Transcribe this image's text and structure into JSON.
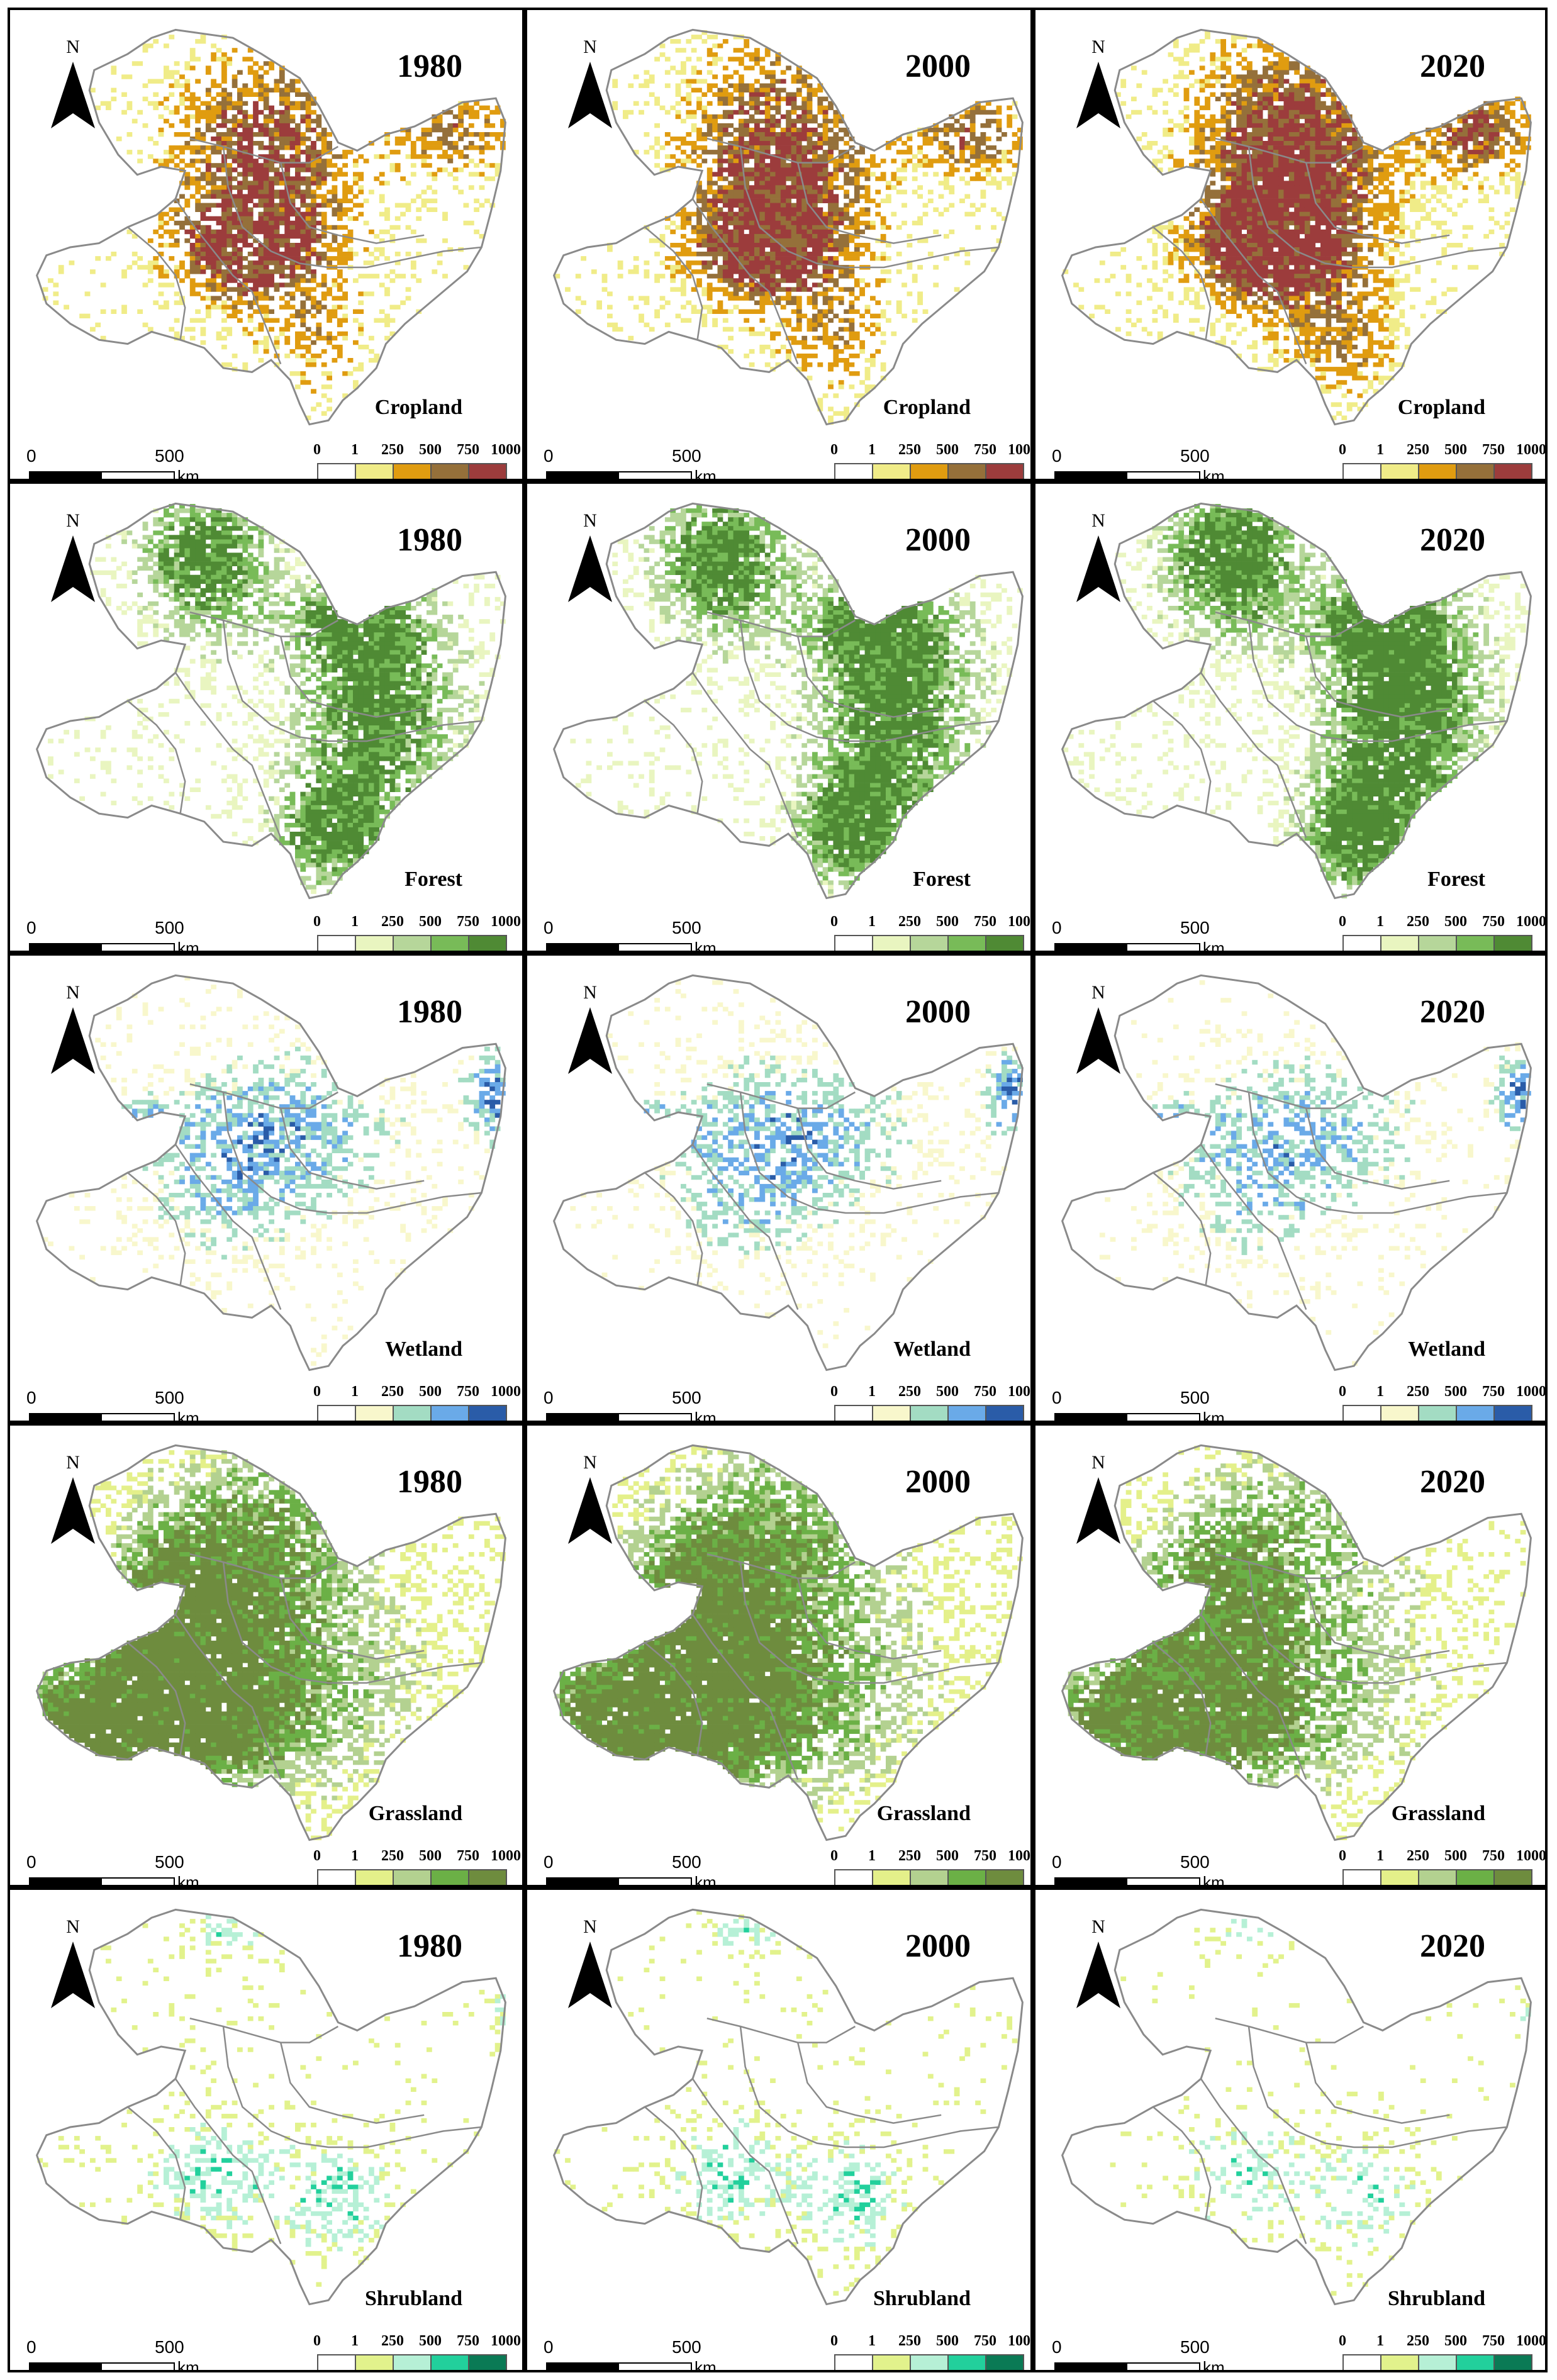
{
  "figure": {
    "columns": [
      "1980",
      "2000",
      "2020"
    ],
    "north_label": "N",
    "scale": {
      "zero": "0",
      "mid": "500",
      "unit": "km"
    },
    "legend_breaks": [
      "0",
      "1",
      "250",
      "500",
      "750",
      "1000"
    ],
    "rows": [
      {
        "layer": "Cropland",
        "colors": [
          "#ffffff",
          "#f0ec88",
          "#e09c10",
          "#95703a",
          "#9c3c3c"
        ],
        "fill_levels": [
          0.3,
          0.38,
          0.55
        ]
      },
      {
        "layer": "Forest",
        "colors": [
          "#ffffff",
          "#e9f5c0",
          "#b6d69a",
          "#78bb58",
          "#4f8a34"
        ],
        "fill_levels": [
          0.42,
          0.47,
          0.56
        ]
      },
      {
        "layer": "Wetland",
        "colors": [
          "#ffffff",
          "#f8f7cc",
          "#a3dcc3",
          "#6aaae8",
          "#2a5ca8"
        ],
        "fill_levels": [
          0.22,
          0.19,
          0.13
        ]
      },
      {
        "layer": "Grassland",
        "colors": [
          "#ffffff",
          "#e4f08a",
          "#b3d190",
          "#6bb046",
          "#6e8c3e"
        ],
        "fill_levels": [
          0.68,
          0.66,
          0.45
        ]
      },
      {
        "layer": "Shrubland",
        "colors": [
          "#ffffff",
          "#e2f28c",
          "#b6f0d6",
          "#22d09c",
          "#0a7a55"
        ],
        "fill_levels": [
          0.16,
          0.14,
          0.07
        ]
      }
    ]
  }
}
